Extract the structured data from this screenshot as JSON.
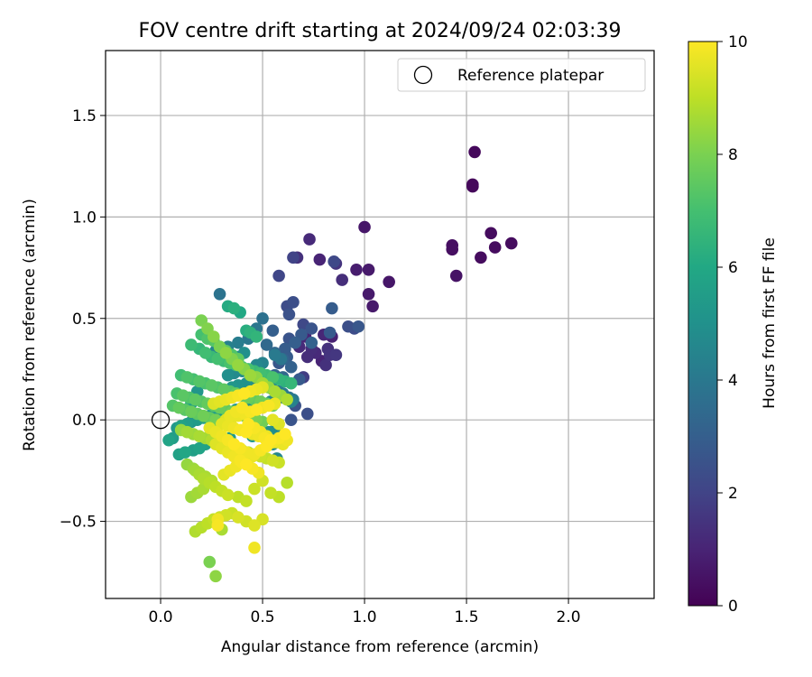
{
  "chart_data": {
    "type": "scatter",
    "title": "FOV centre drift starting at 2024/09/24 02:03:39",
    "xlabel": "Angular distance from reference (arcmin)",
    "ylabel": "Rotation from reference (arcmin)",
    "xlim": [
      -0.27,
      2.42
    ],
    "ylim": [
      -0.88,
      1.82
    ],
    "xticks": [
      "0.0",
      "0.5",
      "1.0",
      "1.5",
      "2.0"
    ],
    "xtick_values": [
      0,
      0.5,
      1.0,
      1.5,
      2.0
    ],
    "yticks": [
      "−0.5",
      "0.0",
      "0.5",
      "1.0",
      "1.5"
    ],
    "ytick_values": [
      -0.5,
      0,
      0.5,
      1.0,
      1.5
    ],
    "grid": true,
    "legend": {
      "position": "top-right",
      "label": "Reference platepar"
    },
    "reference_point": {
      "x": 0.0,
      "y": 0.0
    },
    "colorbar": {
      "label": "Hours from first FF file",
      "range": [
        0,
        10
      ],
      "ticks": [
        "0",
        "2",
        "4",
        "6",
        "8",
        "10"
      ],
      "tick_values": [
        0,
        2,
        4,
        6,
        8,
        10
      ],
      "colormap": "viridis"
    },
    "series": [
      {
        "x": [
          1.54,
          1.53,
          1.53,
          1.43,
          1.43,
          1.45,
          1.62,
          1.64,
          1.72,
          1.57,
          1.0,
          0.96,
          1.02,
          1.02,
          1.04,
          1.12,
          0.73,
          0.78,
          0.67,
          0.89,
          0.86,
          0.84,
          0.8,
          0.76,
          0.74,
          0.82,
          0.86,
          0.71,
          0.68,
          0.72,
          0.79,
          0.81,
          0.83,
          0.7
        ],
        "y": [
          1.32,
          1.16,
          1.15,
          0.86,
          0.84,
          0.71,
          0.92,
          0.85,
          0.87,
          0.8,
          0.95,
          0.74,
          0.74,
          0.62,
          0.56,
          0.68,
          0.89,
          0.79,
          0.8,
          0.69,
          0.77,
          0.41,
          0.42,
          0.33,
          0.35,
          0.35,
          0.32,
          0.41,
          0.36,
          0.31,
          0.29,
          0.27,
          0.32,
          0.21
        ],
        "t": [
          0.2,
          0.2,
          0.2,
          0.4,
          0.4,
          0.5,
          0.3,
          0.3,
          0.3,
          0.3,
          0.6,
          0.8,
          0.7,
          0.7,
          0.7,
          0.6,
          1.2,
          1.0,
          1.4,
          1.3,
          1.5,
          0.9,
          1.1,
          1.2,
          1.3,
          1.4,
          1.6,
          1.0,
          1.2,
          1.3,
          1.0,
          1.4,
          1.5,
          1.8
        ]
      },
      {
        "x": [
          0.58,
          0.65,
          0.85,
          0.62,
          0.65,
          0.63,
          0.7,
          0.74,
          0.92,
          0.83,
          0.95,
          0.97,
          0.84,
          0.63,
          0.66,
          0.69,
          0.74,
          0.61,
          0.6,
          0.56,
          0.58,
          0.55,
          0.52,
          0.64,
          0.68,
          0.53,
          0.56,
          0.6,
          0.62,
          0.72,
          0.64,
          0.66
        ],
        "y": [
          0.71,
          0.8,
          0.78,
          0.56,
          0.58,
          0.52,
          0.47,
          0.45,
          0.46,
          0.43,
          0.45,
          0.46,
          0.55,
          0.4,
          0.38,
          0.42,
          0.38,
          0.35,
          0.3,
          0.33,
          0.28,
          0.44,
          0.37,
          0.26,
          0.2,
          0.18,
          0.22,
          0.21,
          0.31,
          0.03,
          0.0,
          0.07
        ],
        "t": [
          2.1,
          2.0,
          2.2,
          2.3,
          2.4,
          2.5,
          2.2,
          2.6,
          2.4,
          2.8,
          2.3,
          2.7,
          2.9,
          2.6,
          3.0,
          2.8,
          3.1,
          2.9,
          3.2,
          3.3,
          2.7,
          3.0,
          3.4,
          3.1,
          2.8,
          3.5,
          3.2,
          3.3,
          2.9,
          2.4,
          2.6,
          2.5
        ]
      },
      {
        "x": [
          0.29,
          0.5,
          0.47,
          0.43,
          0.38,
          0.33,
          0.27,
          0.56,
          0.59,
          0.5,
          0.47,
          0.41,
          0.4,
          0.36,
          0.33,
          0.52,
          0.46,
          0.42,
          0.38,
          0.35,
          0.55,
          0.58,
          0.6,
          0.63,
          0.65,
          0.54,
          0.5,
          0.44,
          0.4,
          0.37,
          0.32,
          0.28,
          0.24,
          0.21,
          0.18,
          0.15,
          0.13,
          0.1,
          0.08,
          0.56,
          0.53,
          0.48,
          0.45,
          0.34,
          0.3,
          0.26,
          0.22,
          0.19,
          0.16,
          0.12,
          0.09,
          0.06,
          0.04,
          0.18,
          0.15,
          0.12,
          0.35,
          0.38,
          0.41,
          0.57,
          0.6,
          0.64,
          0.55
        ],
        "y": [
          0.62,
          0.5,
          0.45,
          0.4,
          0.38,
          0.36,
          0.34,
          0.32,
          0.3,
          0.28,
          0.27,
          0.25,
          0.24,
          0.23,
          0.22,
          0.2,
          0.19,
          0.18,
          0.17,
          0.16,
          0.15,
          0.14,
          0.13,
          0.11,
          0.1,
          0.09,
          0.08,
          0.07,
          0.06,
          0.05,
          0.04,
          0.03,
          0.02,
          0.01,
          0.0,
          -0.01,
          -0.02,
          -0.03,
          -0.04,
          -0.05,
          -0.06,
          -0.07,
          -0.08,
          -0.09,
          -0.1,
          -0.11,
          -0.12,
          -0.14,
          -0.15,
          -0.16,
          -0.17,
          -0.09,
          -0.1,
          0.14,
          0.08,
          0.05,
          0.29,
          0.31,
          0.33,
          -0.19,
          0.11,
          0.09,
          -0.12
        ],
        "t": [
          3.8,
          3.7,
          3.9,
          4.0,
          4.2,
          4.3,
          4.5,
          4.1,
          3.9,
          4.4,
          4.6,
          4.5,
          4.8,
          4.7,
          4.9,
          4.3,
          4.6,
          5.0,
          5.1,
          5.2,
          4.4,
          4.2,
          4.0,
          3.9,
          4.1,
          4.5,
          4.8,
          5.0,
          5.3,
          5.2,
          5.4,
          5.5,
          5.3,
          5.6,
          5.4,
          5.1,
          5.5,
          5.7,
          5.3,
          4.7,
          4.9,
          5.0,
          5.2,
          5.4,
          5.6,
          5.5,
          5.7,
          5.8,
          5.6,
          5.9,
          5.7,
          5.5,
          5.8,
          5.2,
          5.6,
          5.4,
          4.8,
          4.6,
          4.9,
          4.6,
          4.3,
          4.4,
          4.7
        ]
      },
      {
        "x": [
          0.33,
          0.36,
          0.39,
          0.42,
          0.44,
          0.47,
          0.15,
          0.19,
          0.22,
          0.25,
          0.28,
          0.31,
          0.34,
          0.37,
          0.4,
          0.43,
          0.46,
          0.49,
          0.52,
          0.55,
          0.58,
          0.61,
          0.64,
          0.1,
          0.13,
          0.16,
          0.19,
          0.22,
          0.25,
          0.28,
          0.31,
          0.34,
          0.37,
          0.4,
          0.43,
          0.46,
          0.49,
          0.52,
          0.55,
          0.08,
          0.11,
          0.14,
          0.17,
          0.2,
          0.23,
          0.26,
          0.29,
          0.32,
          0.35,
          0.38,
          0.41,
          0.44,
          0.47,
          0.5,
          0.06,
          0.09,
          0.12,
          0.15,
          0.18,
          0.21,
          0.24,
          0.27,
          0.3,
          0.2,
          0.23,
          0.26,
          0.29,
          0.32,
          0.35,
          0.38
        ],
        "y": [
          0.56,
          0.55,
          0.53,
          0.44,
          0.43,
          0.41,
          0.37,
          0.35,
          0.33,
          0.31,
          0.3,
          0.29,
          0.28,
          0.27,
          0.26,
          0.25,
          0.24,
          0.23,
          0.22,
          0.21,
          0.2,
          0.19,
          0.18,
          0.22,
          0.21,
          0.2,
          0.19,
          0.18,
          0.17,
          0.16,
          0.15,
          0.14,
          0.13,
          0.12,
          0.11,
          0.1,
          0.09,
          0.08,
          0.07,
          0.13,
          0.12,
          0.11,
          0.1,
          0.09,
          0.08,
          0.07,
          0.06,
          0.05,
          0.04,
          0.03,
          0.02,
          0.01,
          0.0,
          -0.01,
          0.07,
          0.06,
          0.05,
          0.04,
          0.03,
          0.02,
          0.01,
          0.0,
          -0.01,
          0.42,
          0.4,
          0.39,
          0.36,
          0.34,
          0.32,
          0.3
        ],
        "t": [
          6.1,
          6.3,
          6.0,
          6.2,
          6.4,
          6.5,
          6.8,
          6.6,
          6.9,
          6.7,
          7.0,
          6.8,
          7.1,
          6.9,
          7.2,
          7.0,
          6.7,
          6.9,
          6.8,
          7.1,
          6.5,
          6.4,
          6.6,
          6.9,
          7.2,
          7.0,
          7.3,
          7.1,
          7.4,
          7.2,
          7.5,
          7.3,
          7.6,
          7.4,
          7.7,
          7.5,
          7.8,
          7.6,
          7.9,
          7.1,
          7.4,
          7.2,
          7.5,
          7.3,
          7.6,
          7.4,
          7.7,
          7.5,
          7.8,
          7.6,
          7.9,
          7.7,
          8.0,
          7.8,
          7.3,
          7.6,
          7.4,
          7.7,
          7.5,
          7.8,
          7.6,
          7.9,
          7.7,
          7.0,
          7.2,
          7.3,
          7.1,
          7.4,
          7.2,
          7.5
        ]
      },
      {
        "x": [
          0.2,
          0.23,
          0.26,
          0.29,
          0.32,
          0.35,
          0.38,
          0.41,
          0.44,
          0.47,
          0.5,
          0.53,
          0.56,
          0.59,
          0.62,
          0.1,
          0.13,
          0.16,
          0.19,
          0.22,
          0.25,
          0.28,
          0.31,
          0.34,
          0.37,
          0.4,
          0.43,
          0.46,
          0.49,
          0.52,
          0.55,
          0.58,
          0.17,
          0.19,
          0.21,
          0.24,
          0.27,
          0.3,
          0.33,
          0.15,
          0.18,
          0.21,
          0.38,
          0.42,
          0.46,
          0.5,
          0.54,
          0.58,
          0.62,
          0.17,
          0.2,
          0.23,
          0.26,
          0.29,
          0.32,
          0.35,
          0.38,
          0.42,
          0.46,
          0.5,
          0.24,
          0.27,
          0.3,
          0.13,
          0.16,
          0.19,
          0.22,
          0.25
        ],
        "y": [
          0.49,
          0.45,
          0.41,
          0.36,
          0.33,
          0.3,
          0.27,
          0.25,
          0.22,
          0.21,
          0.18,
          0.16,
          0.14,
          0.12,
          0.1,
          -0.05,
          -0.06,
          -0.07,
          -0.08,
          -0.09,
          -0.1,
          -0.11,
          -0.12,
          -0.13,
          -0.14,
          -0.15,
          -0.16,
          -0.17,
          -0.18,
          -0.19,
          -0.2,
          -0.21,
          -0.25,
          -0.27,
          -0.29,
          -0.31,
          -0.33,
          -0.35,
          -0.37,
          -0.38,
          -0.36,
          -0.34,
          -0.38,
          -0.4,
          -0.34,
          -0.3,
          -0.36,
          -0.38,
          -0.31,
          -0.55,
          -0.53,
          -0.51,
          -0.49,
          -0.48,
          -0.47,
          -0.46,
          -0.48,
          -0.5,
          -0.52,
          -0.49,
          -0.7,
          -0.77,
          -0.54,
          -0.22,
          -0.24,
          -0.26,
          -0.28,
          -0.3
        ],
        "t": [
          8.0,
          8.1,
          8.2,
          8.0,
          8.3,
          8.1,
          8.4,
          8.2,
          8.5,
          8.3,
          8.6,
          8.4,
          8.7,
          8.5,
          8.8,
          8.4,
          8.6,
          8.5,
          8.7,
          8.6,
          8.8,
          8.7,
          8.9,
          8.8,
          9.0,
          8.9,
          9.1,
          9.0,
          9.2,
          9.1,
          9.3,
          9.2,
          8.6,
          8.7,
          8.8,
          8.9,
          9.0,
          9.1,
          9.2,
          8.5,
          8.6,
          8.7,
          9.0,
          9.1,
          9.2,
          9.3,
          9.1,
          9.0,
          8.9,
          8.8,
          8.9,
          9.0,
          9.1,
          9.2,
          9.3,
          9.2,
          9.4,
          9.3,
          9.5,
          9.4,
          8.0,
          8.3,
          8.7,
          8.4,
          8.5,
          8.6,
          8.7,
          8.8
        ]
      },
      {
        "x": [
          0.28,
          0.31,
          0.34,
          0.37,
          0.4,
          0.43,
          0.46,
          0.49,
          0.52,
          0.55,
          0.58,
          0.61,
          0.3,
          0.33,
          0.36,
          0.39,
          0.42,
          0.45,
          0.48,
          0.51,
          0.54,
          0.57,
          0.6,
          0.32,
          0.35,
          0.38,
          0.41,
          0.44,
          0.47,
          0.5,
          0.53,
          0.56,
          0.26,
          0.29,
          0.32,
          0.35,
          0.38,
          0.41,
          0.44,
          0.47,
          0.5,
          0.27,
          0.3,
          0.33,
          0.36,
          0.39,
          0.42,
          0.45,
          0.48,
          0.34,
          0.37,
          0.4,
          0.43,
          0.46,
          0.49,
          0.52,
          0.55,
          0.58,
          0.62,
          0.24,
          0.27,
          0.3,
          0.33,
          0.36,
          0.39,
          0.42,
          0.45,
          0.28,
          0.46
        ],
        "y": [
          -0.49,
          -0.27,
          -0.25,
          -0.23,
          -0.21,
          -0.19,
          -0.17,
          -0.15,
          -0.13,
          -0.11,
          -0.09,
          -0.07,
          -0.02,
          -0.03,
          -0.04,
          -0.05,
          -0.06,
          -0.07,
          -0.08,
          -0.09,
          -0.1,
          -0.11,
          -0.12,
          0.0,
          0.01,
          0.02,
          0.03,
          0.04,
          0.05,
          0.06,
          0.07,
          0.08,
          0.08,
          0.09,
          0.1,
          0.11,
          0.12,
          0.13,
          0.14,
          0.15,
          0.16,
          -0.12,
          -0.14,
          -0.16,
          -0.18,
          -0.2,
          -0.22,
          -0.24,
          -0.26,
          0.02,
          0.04,
          0.06,
          -0.02,
          -0.04,
          -0.06,
          -0.08,
          0.0,
          -0.02,
          -0.1,
          -0.04,
          -0.06,
          -0.08,
          -0.1,
          -0.12,
          -0.14,
          -0.16,
          -0.18,
          -0.52,
          -0.63
        ],
        "t": [
          9.8,
          9.6,
          9.7,
          9.8,
          9.9,
          9.7,
          9.8,
          9.9,
          10.0,
          9.8,
          9.9,
          10.0,
          9.6,
          9.7,
          9.8,
          9.9,
          10.0,
          9.7,
          9.8,
          9.9,
          10.0,
          9.6,
          9.7,
          9.5,
          9.6,
          9.7,
          9.8,
          9.9,
          10.0,
          9.8,
          9.9,
          9.7,
          9.5,
          9.6,
          9.7,
          9.8,
          9.9,
          10.0,
          9.8,
          9.7,
          9.6,
          9.5,
          9.6,
          9.7,
          9.8,
          9.9,
          10.0,
          9.9,
          9.8,
          9.7,
          9.8,
          9.9,
          10.0,
          9.9,
          9.8,
          9.7,
          9.6,
          9.5,
          9.8,
          9.6,
          9.7,
          9.8,
          9.9,
          10.0,
          9.9,
          9.8,
          9.7,
          9.9,
          9.8
        ]
      }
    ]
  }
}
